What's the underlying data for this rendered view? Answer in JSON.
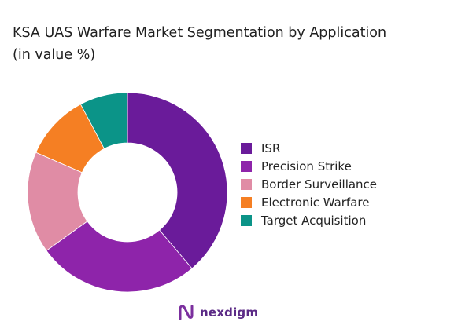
{
  "chart_data": {
    "type": "pie",
    "variant": "donut",
    "title": "KSA UAS Warfare Market Segmentation by Application",
    "subtitle": "(in value %)",
    "categories": [
      "ISR",
      "Precision Strike",
      "Border Surveillance",
      "Electronic Warfare",
      "Target Acquisition"
    ],
    "values": [
      40,
      27,
      17,
      11,
      8
    ],
    "colors": [
      "#6a1b9a",
      "#8e24aa",
      "#e08ca5",
      "#f57f23",
      "#0b9488"
    ],
    "legend_position": "right"
  },
  "brand": {
    "name": "nexdigm",
    "logo_icon": "nexdigm-logo-icon",
    "color": "#5b2a86"
  }
}
